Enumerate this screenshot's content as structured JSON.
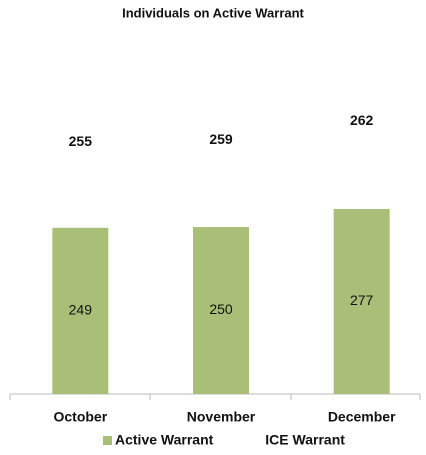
{
  "chart_data": {
    "type": "stacked_bar",
    "title": "Individuals on Active Warrant",
    "categories": [
      "October",
      "November",
      "December"
    ],
    "series": [
      {
        "name": "Active Warrant",
        "color": "#a9bf78",
        "values": [
          249,
          250,
          277
        ]
      },
      {
        "name": "ICE Warrant",
        "color": "#ffffff",
        "values": [
          255,
          259,
          262
        ]
      }
    ],
    "ylim": [
      0,
      530
    ],
    "legend": "bottom"
  }
}
